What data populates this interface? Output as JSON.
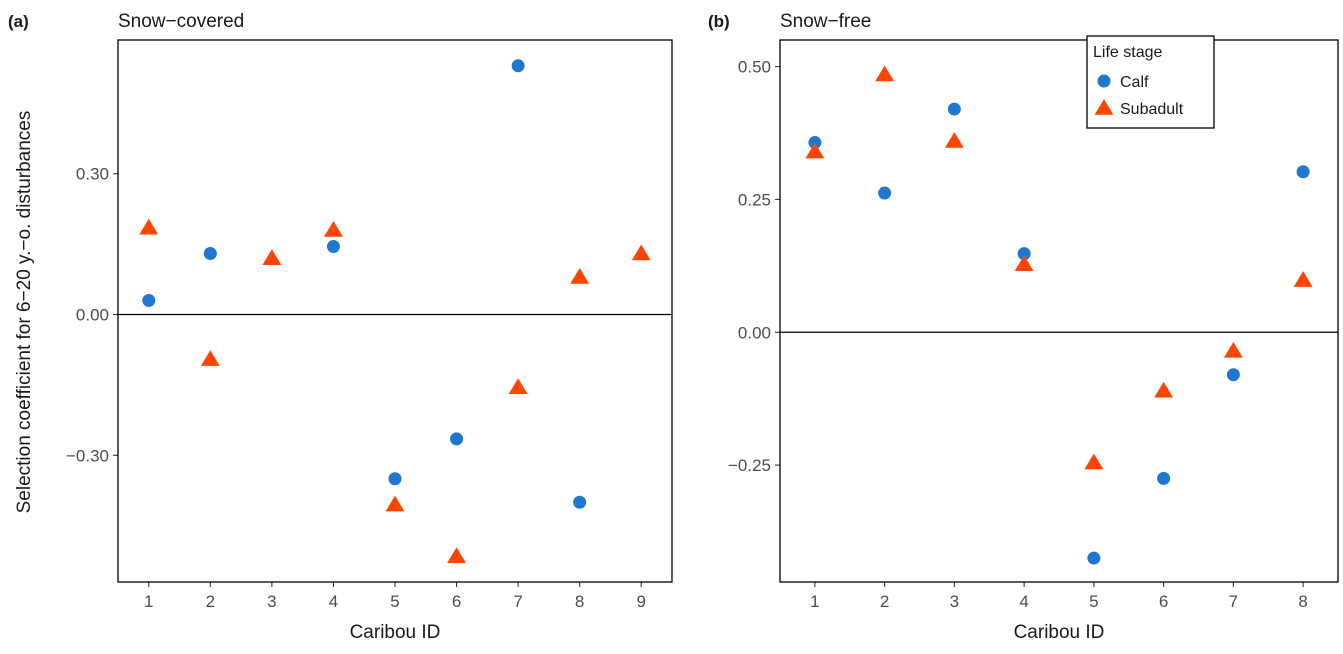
{
  "y_axis_title": "Selection coefficient for 6−20 y.−o. disturbances",
  "legend": {
    "title": "Life stage",
    "entries": [
      {
        "label": "Calf",
        "color": "#1F77D0",
        "shape": "circle"
      },
      {
        "label": "Subadult",
        "color": "#FF4500",
        "shape": "triangle"
      }
    ]
  },
  "chart_data": [
    {
      "type": "scatter",
      "panel_tag": "(a)",
      "title": "Snow−covered",
      "xlabel": "Caribou ID",
      "x_ticks": [
        1,
        2,
        3,
        4,
        5,
        6,
        7,
        8,
        9
      ],
      "xlim": [
        0.5,
        9.5
      ],
      "ylim": [
        -0.57,
        0.585
      ],
      "y_ticks": [
        -0.3,
        0.0,
        0.3
      ],
      "y_tick_labels": [
        "−0.30",
        "0.00",
        "0.30"
      ],
      "reference_line_y": 0,
      "series": [
        {
          "name": "Calf",
          "points": [
            [
              1,
              0.03
            ],
            [
              2,
              0.13
            ],
            [
              4,
              0.145
            ],
            [
              5,
              -0.35
            ],
            [
              6,
              -0.265
            ],
            [
              7,
              0.53
            ],
            [
              8,
              -0.4
            ]
          ]
        },
        {
          "name": "Subadult",
          "points": [
            [
              1,
              0.185
            ],
            [
              2,
              -0.095
            ],
            [
              3,
              0.12
            ],
            [
              4,
              0.18
            ],
            [
              5,
              -0.405
            ],
            [
              6,
              -0.515
            ],
            [
              7,
              -0.155
            ],
            [
              8,
              0.08
            ],
            [
              9,
              0.13
            ]
          ]
        }
      ]
    },
    {
      "type": "scatter",
      "panel_tag": "(b)",
      "title": "Snow−free",
      "xlabel": "Caribou ID",
      "x_ticks": [
        1,
        2,
        3,
        4,
        5,
        6,
        7,
        8
      ],
      "xlim": [
        0.5,
        8.5
      ],
      "ylim": [
        -0.47,
        0.55
      ],
      "y_ticks": [
        -0.25,
        0.0,
        0.25,
        0.5
      ],
      "y_tick_labels": [
        "−0.25",
        "0.00",
        "0.25",
        "0.50"
      ],
      "reference_line_y": 0,
      "legend_position": "top-right",
      "series": [
        {
          "name": "Calf",
          "points": [
            [
              1,
              0.357
            ],
            [
              2,
              0.262
            ],
            [
              3,
              0.42
            ],
            [
              4,
              0.148
            ],
            [
              5,
              -0.425
            ],
            [
              6,
              -0.275
            ],
            [
              7,
              -0.08
            ],
            [
              8,
              0.302
            ]
          ]
        },
        {
          "name": "Subadult",
          "points": [
            [
              1,
              0.34
            ],
            [
              2,
              0.485
            ],
            [
              3,
              0.36
            ],
            [
              4,
              0.128
            ],
            [
              5,
              -0.245
            ],
            [
              6,
              -0.11
            ],
            [
              7,
              -0.035
            ],
            [
              8,
              0.098
            ]
          ]
        }
      ]
    }
  ]
}
